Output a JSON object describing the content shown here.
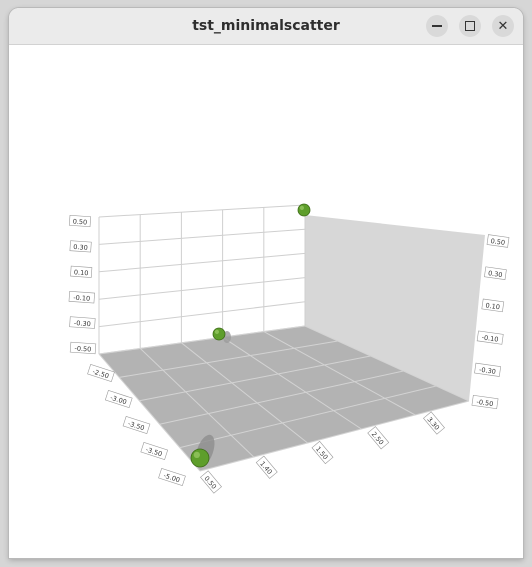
{
  "window": {
    "title": "tst_minimalscatter",
    "controls": {
      "minimize_icon": "minimize-icon",
      "maximize_icon": "maximize-icon",
      "close_icon": "close-icon"
    }
  },
  "chart_data": {
    "type": "scatter",
    "title": "",
    "axes": {
      "back_wall_ticks": [
        "0.50",
        "0.30",
        "0.10",
        "-0.10",
        "-0.30",
        "-0.50"
      ],
      "right_wall_ticks": [
        "0.50",
        "0.30",
        "0.10",
        "-0.10",
        "-0.30",
        "-0.50"
      ],
      "floor_left_ticks": [
        "-2.50",
        "-3.00",
        "-3.50",
        "-3.50",
        "-5.00"
      ],
      "floor_front_ticks": [
        "0.50",
        "1.40",
        "1.50",
        "2.50",
        "3.30"
      ]
    },
    "points": [
      {
        "label": "top-right",
        "size": 6
      },
      {
        "label": "middle",
        "size": 6
      },
      {
        "label": "front-left",
        "size": 9
      }
    ],
    "colors": {
      "point": "#5e9e2b",
      "floor": "#b3b3b3",
      "right_wall": "#d7d7d7",
      "grid": "#c8c8c8"
    },
    "grid": true
  }
}
